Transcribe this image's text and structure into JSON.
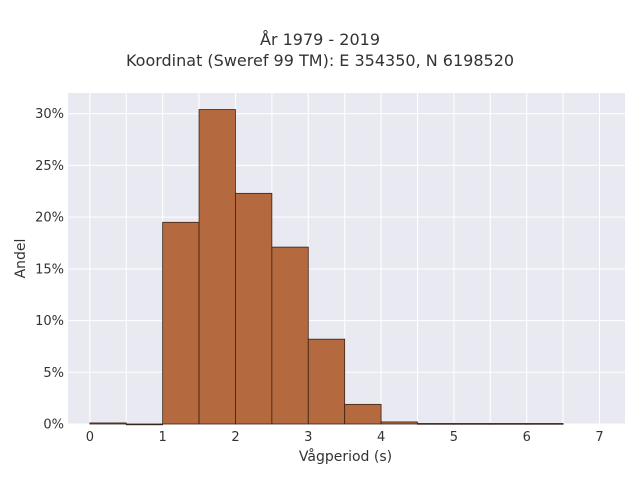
{
  "chart_data": {
    "type": "bar",
    "title": "År 1979 - 2019",
    "subtitle": "Koordinat (Sweref 99 TM): E 354350, N 6198520",
    "xlabel": "Vågperiod (s)",
    "ylabel": "Andel",
    "x_ticks": [
      "0",
      "1",
      "2",
      "3",
      "4",
      "5",
      "6",
      "7"
    ],
    "y_ticks": [
      "0%",
      "5%",
      "10%",
      "15%",
      "20%",
      "25%",
      "30%"
    ],
    "xlim": [
      -0.3,
      7.35
    ],
    "ylim": [
      0,
      32
    ],
    "bin_width": 0.5,
    "bins": [
      {
        "x0": 0.0,
        "x1": 0.5,
        "value": 0.1
      },
      {
        "x0": 0.5,
        "x1": 1.0,
        "value": 0.0
      },
      {
        "x0": 1.0,
        "x1": 1.5,
        "value": 19.5
      },
      {
        "x0": 1.5,
        "x1": 2.0,
        "value": 30.4
      },
      {
        "x0": 2.0,
        "x1": 2.5,
        "value": 22.3
      },
      {
        "x0": 2.5,
        "x1": 3.0,
        "value": 17.1
      },
      {
        "x0": 3.0,
        "x1": 3.5,
        "value": 8.2
      },
      {
        "x0": 3.5,
        "x1": 4.0,
        "value": 1.9
      },
      {
        "x0": 4.0,
        "x1": 4.5,
        "value": 0.2
      },
      {
        "x0": 4.5,
        "x1": 5.0,
        "value": 0.05
      },
      {
        "x0": 5.0,
        "x1": 5.5,
        "value": 0.05
      },
      {
        "x0": 5.5,
        "x1": 6.0,
        "value": 0.05
      },
      {
        "x0": 6.0,
        "x1": 6.5,
        "value": 0.05
      }
    ],
    "bar_color": "#b5693e",
    "bar_edge_color": "#3a2214",
    "plot_bg": "#e9e9f1",
    "grid": true
  }
}
